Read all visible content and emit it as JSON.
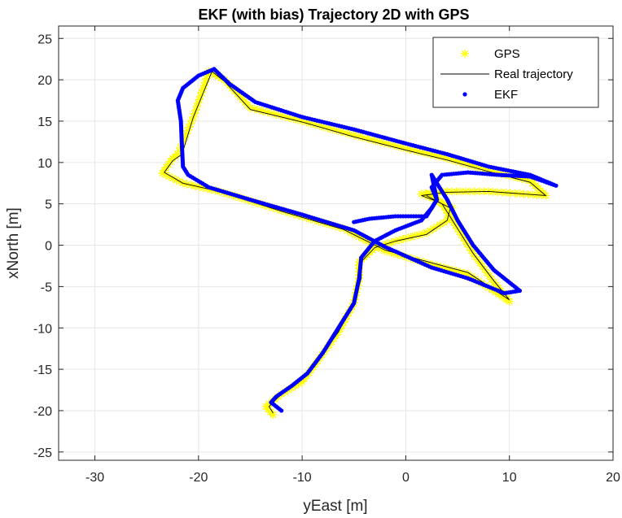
{
  "chart_data": {
    "type": "scatter",
    "title": "EKF (with bias) Trajectory 2D with GPS",
    "xlabel": "yEast [m]",
    "ylabel": "xNorth [m]",
    "xlim": [
      -33.5,
      20
    ],
    "ylim": [
      -26,
      26.5
    ],
    "xticks": [
      -30,
      -20,
      -10,
      0,
      10,
      20
    ],
    "yticks": [
      -25,
      -20,
      -15,
      -10,
      -5,
      0,
      5,
      10,
      15,
      20,
      25
    ],
    "grid": true,
    "legend_position": "top-right",
    "series": [
      {
        "name": "GPS",
        "style": "asterisk-markers",
        "color": "#FFFF00",
        "path": [
          [
            -12.8,
            -20.5
          ],
          [
            -13.5,
            -19.5
          ],
          [
            -12.0,
            -18.0
          ],
          [
            -10.0,
            -16.5
          ],
          [
            -8.5,
            -14.0
          ],
          [
            -6.5,
            -10.5
          ],
          [
            -5.0,
            -7.0
          ],
          [
            -4.5,
            -4.0
          ],
          [
            -4.5,
            -2.0
          ],
          [
            -3.0,
            -0.3
          ],
          [
            -1.0,
            0.5
          ],
          [
            2.0,
            1.5
          ],
          [
            4.0,
            3.0
          ],
          [
            4.5,
            4.5
          ],
          [
            3.0,
            5.5
          ],
          [
            1.5,
            6.2
          ],
          [
            4.0,
            6.5
          ],
          [
            8.0,
            6.5
          ],
          [
            13.5,
            6.0
          ],
          [
            12.0,
            7.8
          ],
          [
            8.0,
            9.0
          ],
          [
            4.0,
            10.5
          ],
          [
            0.0,
            11.7
          ],
          [
            -5.0,
            13.3
          ],
          [
            -10.0,
            15.0
          ],
          [
            -15.0,
            16.6
          ],
          [
            -17.5,
            20.0
          ],
          [
            -19.0,
            21.0
          ],
          [
            -20.5,
            15.5
          ],
          [
            -22.0,
            11.0
          ],
          [
            -22.5,
            10.5
          ],
          [
            -23.5,
            8.7
          ],
          [
            -21.5,
            7.5
          ],
          [
            -18.0,
            6.5
          ],
          [
            -12.0,
            4.2
          ],
          [
            -6.0,
            2.0
          ],
          [
            -2.0,
            -0.7
          ],
          [
            3.0,
            -2.5
          ],
          [
            6.0,
            -3.5
          ],
          [
            10.0,
            -6.8
          ],
          [
            8.5,
            -4.5
          ],
          [
            6.5,
            -1.0
          ],
          [
            5.0,
            2.0
          ],
          [
            3.5,
            5.0
          ],
          [
            2.0,
            6.2
          ]
        ]
      },
      {
        "name": "Real trajectory",
        "style": "line",
        "color": "#000000",
        "path": [
          [
            -12.8,
            -20.3
          ],
          [
            -13.2,
            -19.5
          ],
          [
            -12.0,
            -18.0
          ],
          [
            -10.0,
            -16.2
          ],
          [
            -8.5,
            -14.0
          ],
          [
            -6.5,
            -10.5
          ],
          [
            -5.0,
            -7.0
          ],
          [
            -4.3,
            -4.0
          ],
          [
            -4.3,
            -2.0
          ],
          [
            -3.0,
            -0.3
          ],
          [
            -1.0,
            0.5
          ],
          [
            2.0,
            1.3
          ],
          [
            4.0,
            3.0
          ],
          [
            4.3,
            4.5
          ],
          [
            3.0,
            5.3
          ],
          [
            1.5,
            6.0
          ],
          [
            4.0,
            6.4
          ],
          [
            8.0,
            6.5
          ],
          [
            13.5,
            6.0
          ],
          [
            12.0,
            7.6
          ],
          [
            8.0,
            8.9
          ],
          [
            4.0,
            10.3
          ],
          [
            0.0,
            11.5
          ],
          [
            -5.0,
            13.1
          ],
          [
            -10.0,
            14.9
          ],
          [
            -15.0,
            16.4
          ],
          [
            -17.5,
            19.8
          ],
          [
            -18.7,
            21.0
          ],
          [
            -20.5,
            15.5
          ],
          [
            -21.6,
            11.0
          ],
          [
            -22.5,
            10.2
          ],
          [
            -23.3,
            8.8
          ],
          [
            -21.5,
            7.5
          ],
          [
            -18.0,
            6.5
          ],
          [
            -12.0,
            4.1
          ],
          [
            -6.0,
            1.9
          ],
          [
            -2.0,
            -0.6
          ],
          [
            3.0,
            -2.3
          ],
          [
            6.0,
            -3.3
          ],
          [
            10.0,
            -6.6
          ],
          [
            8.5,
            -4.3
          ],
          [
            6.5,
            -1.0
          ],
          [
            5.0,
            2.0
          ],
          [
            3.5,
            5.0
          ],
          [
            2.0,
            6.0
          ]
        ]
      },
      {
        "name": "EKF",
        "style": "dot-markers",
        "color": "#0000FF",
        "path": [
          [
            -12.0,
            -20.0
          ],
          [
            -13.0,
            -19.0
          ],
          [
            -12.5,
            -18.3
          ],
          [
            -11.0,
            -17.0
          ],
          [
            -9.5,
            -15.5
          ],
          [
            -8.0,
            -13.0
          ],
          [
            -6.5,
            -10.0
          ],
          [
            -5.0,
            -7.0
          ],
          [
            -4.5,
            -4.0
          ],
          [
            -4.3,
            -1.5
          ],
          [
            -3.0,
            0.5
          ],
          [
            -1.0,
            1.8
          ],
          [
            1.5,
            3.0
          ],
          [
            2.5,
            4.5
          ],
          [
            3.0,
            5.5
          ],
          [
            2.5,
            7.0
          ],
          [
            3.5,
            8.5
          ],
          [
            6.0,
            8.8
          ],
          [
            9.0,
            8.5
          ],
          [
            12.0,
            8.3
          ],
          [
            14.5,
            7.2
          ],
          [
            12.0,
            8.5
          ],
          [
            8.0,
            9.5
          ],
          [
            4.0,
            11.0
          ],
          [
            0.0,
            12.3
          ],
          [
            -5.0,
            14.0
          ],
          [
            -10.0,
            15.5
          ],
          [
            -14.5,
            17.3
          ],
          [
            -17.0,
            19.5
          ],
          [
            -18.5,
            21.3
          ],
          [
            -20.0,
            20.5
          ],
          [
            -21.5,
            19.0
          ],
          [
            -22.0,
            17.5
          ],
          [
            -21.7,
            15.0
          ],
          [
            -21.6,
            12.0
          ],
          [
            -21.5,
            9.5
          ],
          [
            -21.0,
            8.5
          ],
          [
            -19.0,
            7.0
          ],
          [
            -15.0,
            5.5
          ],
          [
            -10.0,
            3.7
          ],
          [
            -5.0,
            1.8
          ],
          [
            -2.0,
            -0.2
          ],
          [
            2.5,
            -2.7
          ],
          [
            6.0,
            -4.0
          ],
          [
            9.5,
            -5.8
          ],
          [
            11.0,
            -5.5
          ],
          [
            8.5,
            -3.0
          ],
          [
            6.5,
            0.0
          ],
          [
            5.0,
            3.0
          ],
          [
            4.0,
            5.5
          ],
          [
            3.0,
            7.5
          ],
          [
            2.5,
            8.5
          ],
          [
            3.0,
            5.5
          ],
          [
            2.0,
            3.5
          ],
          [
            -1.0,
            3.5
          ],
          [
            -3.5,
            3.2
          ],
          [
            -5.0,
            2.8
          ]
        ]
      }
    ]
  }
}
